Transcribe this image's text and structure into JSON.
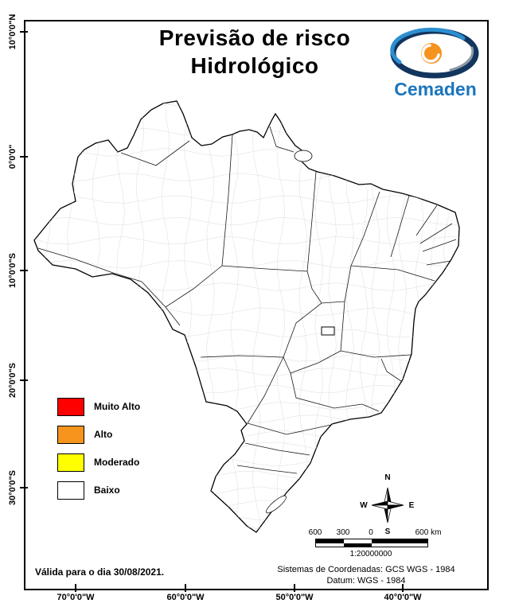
{
  "title": {
    "line1": "Previsão de risco",
    "line2": "Hidrológico"
  },
  "logo": {
    "wordmark": "Cemaden"
  },
  "axis": {
    "left": [
      "10°0'0\"N",
      "0°0'0\"",
      "10°0'0\"S",
      "20°0'0\"S",
      "30°0'0\"S"
    ],
    "bottom": [
      "70°0'0\"W",
      "60°0'0\"W",
      "50°0'0\"W",
      "40°0'0\"W"
    ]
  },
  "legend": {
    "items": [
      {
        "label": "Muito Alto",
        "color": "#fe0000"
      },
      {
        "label": "Alto",
        "color": "#f7941e"
      },
      {
        "label": "Moderado",
        "color": "#ffff00"
      },
      {
        "label": "Baixo",
        "color": "#ffffff"
      }
    ]
  },
  "compass": {
    "north": "N",
    "south": "S",
    "east": "E",
    "west": "W"
  },
  "scale": {
    "labels": [
      "600",
      "300",
      "0",
      "600 km"
    ],
    "ratio": "1:20000000"
  },
  "footer": {
    "validity": "Válida para o dia 30/08/2021.",
    "coord_line1": "Sistemas de Coordenadas: GCS WGS - 1984",
    "coord_line2": "Datum: WGS - 1984"
  }
}
